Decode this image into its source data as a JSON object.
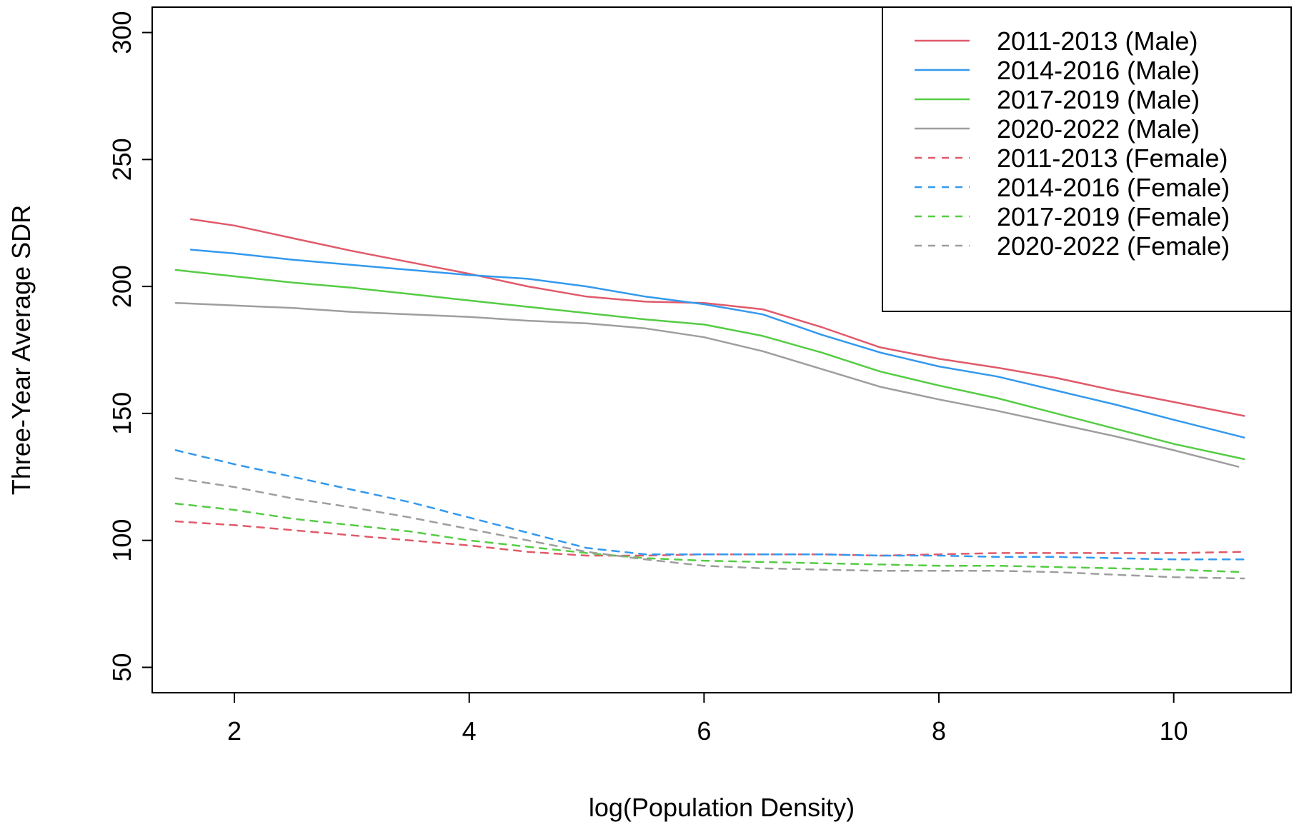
{
  "chart_data": {
    "type": "line",
    "xlabel": "log(Population Density)",
    "ylabel": "Three-Year Average SDR",
    "xlim": [
      1.3,
      11.0
    ],
    "ylim": [
      40,
      310
    ],
    "xticks": [
      2,
      4,
      6,
      8,
      10
    ],
    "yticks": [
      50,
      100,
      150,
      200,
      250,
      300
    ],
    "legend_position": "top-right",
    "grid": false,
    "series": [
      {
        "name": "2011-2013 (Male)",
        "color": "#E05A6A",
        "dash": "solid",
        "points": [
          [
            1.63,
            226.5
          ],
          [
            2,
            224
          ],
          [
            2.5,
            219
          ],
          [
            3,
            214
          ],
          [
            3.5,
            209.5
          ],
          [
            4,
            205
          ],
          [
            4.5,
            200
          ],
          [
            5,
            196
          ],
          [
            5.5,
            194
          ],
          [
            6,
            193.5
          ],
          [
            6.5,
            191
          ],
          [
            7,
            184
          ],
          [
            7.5,
            176
          ],
          [
            8,
            171.5
          ],
          [
            8.5,
            168
          ],
          [
            9,
            164
          ],
          [
            9.5,
            159
          ],
          [
            10,
            154.5
          ],
          [
            10.6,
            149
          ]
        ]
      },
      {
        "name": "2014-2016 (Male)",
        "color": "#3399EE",
        "dash": "solid",
        "points": [
          [
            1.63,
            214.5
          ],
          [
            2,
            213
          ],
          [
            2.5,
            210.5
          ],
          [
            3,
            208.5
          ],
          [
            3.5,
            206.5
          ],
          [
            4,
            204.5
          ],
          [
            4.5,
            203
          ],
          [
            5,
            200
          ],
          [
            5.5,
            196
          ],
          [
            6,
            193
          ],
          [
            6.5,
            189
          ],
          [
            7,
            181
          ],
          [
            7.5,
            174
          ],
          [
            8,
            168.5
          ],
          [
            8.5,
            164.5
          ],
          [
            9,
            159
          ],
          [
            9.5,
            153.5
          ],
          [
            10,
            147.5
          ],
          [
            10.6,
            140.5
          ]
        ]
      },
      {
        "name": "2017-2019 (Male)",
        "color": "#55CC44",
        "dash": "solid",
        "points": [
          [
            1.5,
            206.5
          ],
          [
            2,
            204
          ],
          [
            2.5,
            201.5
          ],
          [
            3,
            199.5
          ],
          [
            3.5,
            197
          ],
          [
            4,
            194.5
          ],
          [
            4.5,
            192
          ],
          [
            5,
            189.5
          ],
          [
            5.5,
            187
          ],
          [
            6,
            185
          ],
          [
            6.5,
            180.5
          ],
          [
            7,
            174
          ],
          [
            7.5,
            166.5
          ],
          [
            8,
            161
          ],
          [
            8.5,
            156
          ],
          [
            9,
            150
          ],
          [
            9.5,
            144
          ],
          [
            10,
            138
          ],
          [
            10.6,
            132
          ]
        ]
      },
      {
        "name": "2020-2022 (Male)",
        "color": "#9E9E9E",
        "dash": "solid",
        "points": [
          [
            1.5,
            193.5
          ],
          [
            2,
            192.5
          ],
          [
            2.5,
            191.5
          ],
          [
            3,
            190
          ],
          [
            3.5,
            189
          ],
          [
            4,
            188
          ],
          [
            4.5,
            186.5
          ],
          [
            5,
            185.5
          ],
          [
            5.5,
            183.5
          ],
          [
            6,
            180
          ],
          [
            6.5,
            174.5
          ],
          [
            7,
            167.5
          ],
          [
            7.5,
            160.5
          ],
          [
            8,
            155.5
          ],
          [
            8.5,
            151
          ],
          [
            9,
            146
          ],
          [
            9.5,
            141
          ],
          [
            10,
            135.5
          ],
          [
            10.55,
            129
          ]
        ]
      },
      {
        "name": "2011-2013 (Female)",
        "color": "#E05A6A",
        "dash": "dashed",
        "points": [
          [
            1.5,
            107.5
          ],
          [
            2,
            106
          ],
          [
            2.5,
            104
          ],
          [
            3,
            102
          ],
          [
            3.5,
            100
          ],
          [
            4,
            98
          ],
          [
            4.5,
            95.5
          ],
          [
            5,
            94
          ],
          [
            5.5,
            94
          ],
          [
            6,
            94.5
          ],
          [
            6.5,
            94.5
          ],
          [
            7,
            94.5
          ],
          [
            7.5,
            94
          ],
          [
            8,
            94.5
          ],
          [
            8.5,
            95
          ],
          [
            9,
            95
          ],
          [
            9.5,
            95
          ],
          [
            10,
            95
          ],
          [
            10.6,
            95.5
          ]
        ]
      },
      {
        "name": "2014-2016 (Female)",
        "color": "#3399EE",
        "dash": "dashed",
        "points": [
          [
            1.5,
            135.5
          ],
          [
            2,
            130
          ],
          [
            2.5,
            125
          ],
          [
            3,
            120
          ],
          [
            3.5,
            115
          ],
          [
            4,
            109
          ],
          [
            4.5,
            103
          ],
          [
            5,
            97
          ],
          [
            5.5,
            94.5
          ],
          [
            6,
            94.5
          ],
          [
            6.5,
            94.5
          ],
          [
            7,
            94.5
          ],
          [
            7.5,
            94
          ],
          [
            8,
            94
          ],
          [
            8.5,
            93.5
          ],
          [
            9,
            93.5
          ],
          [
            9.5,
            93
          ],
          [
            10,
            92.5
          ],
          [
            10.6,
            92.5
          ]
        ]
      },
      {
        "name": "2017-2019 (Female)",
        "color": "#55CC44",
        "dash": "dashed",
        "points": [
          [
            1.5,
            114.5
          ],
          [
            2,
            112
          ],
          [
            2.5,
            108.5
          ],
          [
            3,
            106
          ],
          [
            3.5,
            103.5
          ],
          [
            4,
            100
          ],
          [
            4.5,
            97.5
          ],
          [
            5,
            95
          ],
          [
            5.5,
            93
          ],
          [
            6,
            92
          ],
          [
            6.5,
            91.5
          ],
          [
            7,
            91
          ],
          [
            7.5,
            90.5
          ],
          [
            8,
            90
          ],
          [
            8.5,
            90
          ],
          [
            9,
            89.5
          ],
          [
            9.5,
            89
          ],
          [
            10,
            88.5
          ],
          [
            10.6,
            87.5
          ]
        ]
      },
      {
        "name": "2020-2022 (Female)",
        "color": "#9E9E9E",
        "dash": "dashed",
        "points": [
          [
            1.5,
            124.5
          ],
          [
            2,
            121
          ],
          [
            2.5,
            116.5
          ],
          [
            3,
            113
          ],
          [
            3.5,
            109
          ],
          [
            4,
            104.5
          ],
          [
            4.5,
            100
          ],
          [
            5,
            95.5
          ],
          [
            5.5,
            92.5
          ],
          [
            6,
            90
          ],
          [
            6.5,
            89
          ],
          [
            7,
            88.5
          ],
          [
            7.5,
            88
          ],
          [
            8,
            88
          ],
          [
            8.5,
            88
          ],
          [
            9,
            87.5
          ],
          [
            9.5,
            86.5
          ],
          [
            10,
            85.5
          ],
          [
            10.6,
            85
          ]
        ]
      }
    ]
  }
}
